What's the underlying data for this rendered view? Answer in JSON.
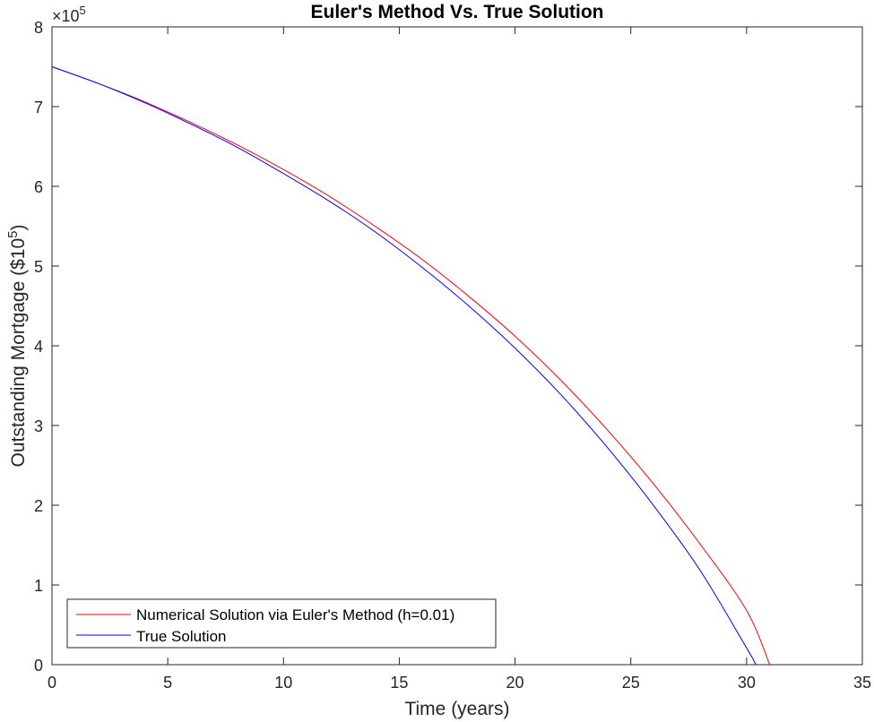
{
  "chart_data": {
    "type": "line",
    "title": "Euler's Method Vs. True Solution",
    "xlabel": "Time (years)",
    "ylabel_base": "Outstanding Mortgage ($10",
    "ylabel_exp": "5",
    "ylabel_close": ")",
    "y_multiplier_base": "×10",
    "y_multiplier_exp": "5",
    "xlim": [
      0,
      35
    ],
    "ylim": [
      0,
      8
    ],
    "x_ticks": [
      0,
      5,
      10,
      15,
      20,
      25,
      30,
      35
    ],
    "y_ticks": [
      0,
      1,
      2,
      3,
      4,
      5,
      6,
      7,
      8
    ],
    "grid": false,
    "legend_placement": "bottom-left",
    "series": [
      {
        "name": "Numerical Solution via Euler's Method (h=0.01)",
        "color": "#ff0000",
        "x": [
          0,
          2,
          4,
          6,
          8,
          10,
          12,
          14,
          16,
          18,
          20,
          22,
          24,
          26,
          28,
          30,
          31
        ],
        "y": [
          7.5,
          7.29,
          7.06,
          6.8,
          6.52,
          6.21,
          5.87,
          5.49,
          5.08,
          4.62,
          4.12,
          3.56,
          2.94,
          2.26,
          1.51,
          0.68,
          0
        ]
      },
      {
        "name": "True Solution",
        "color": "#0000ff",
        "x": [
          0,
          2,
          4,
          6,
          8,
          10,
          12,
          14,
          16,
          18,
          20,
          22,
          24,
          26,
          28,
          30,
          30.4
        ],
        "y": [
          7.5,
          7.29,
          7.05,
          6.78,
          6.49,
          6.16,
          5.81,
          5.42,
          4.98,
          4.5,
          3.97,
          3.38,
          2.72,
          1.99,
          1.18,
          0.21,
          0
        ]
      }
    ]
  }
}
